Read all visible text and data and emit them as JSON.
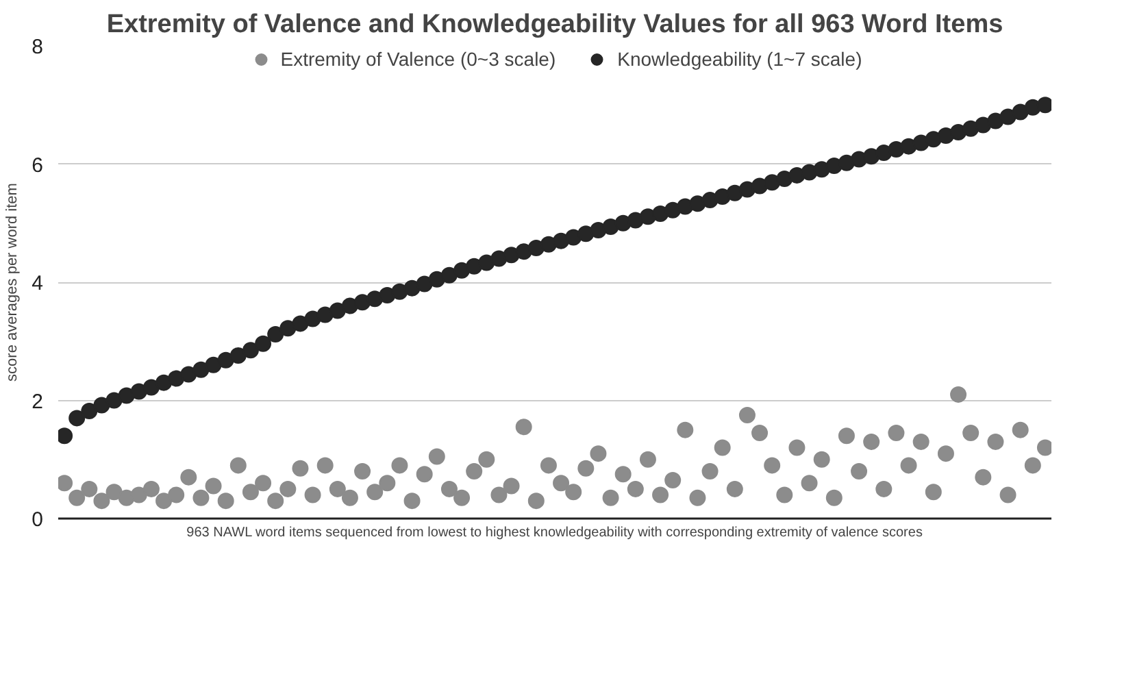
{
  "chart_data": {
    "type": "scatter",
    "title": "Extremity of Valence and Knowledgeability Values for all 963 Word Items",
    "xlabel": "963 NAWL word items sequenced from lowest to highest knowledgeability with corresponding extremity of valence scores",
    "ylabel": "score averages per word item",
    "categories": [
      null,
      null,
      null,
      null,
      null,
      null,
      null,
      null,
      null,
      null,
      null,
      null,
      null,
      null,
      null,
      null,
      null,
      null,
      null,
      null,
      null,
      null,
      null,
      null,
      null,
      null,
      null,
      null,
      null,
      null,
      null,
      null,
      null,
      null,
      null,
      null,
      null,
      null,
      null,
      null,
      null,
      null,
      null,
      null,
      null,
      null,
      null,
      null,
      null,
      null,
      null,
      null,
      null,
      null,
      null,
      null,
      null,
      null,
      null,
      null,
      null,
      null,
      null,
      null,
      null,
      null,
      null,
      null,
      null,
      null,
      null,
      null,
      null,
      null,
      null,
      null,
      null,
      null,
      null,
      null
    ],
    "series": [
      {
        "name": "Extremity of Valence (0~3 scale)",
        "color": "#8c8c8c",
        "values": [
          0.6,
          0.35,
          0.5,
          0.3,
          0.45,
          0.35,
          0.4,
          0.5,
          0.3,
          0.4,
          0.7,
          0.35,
          0.55,
          0.3,
          0.9,
          0.45,
          0.6,
          0.3,
          0.5,
          0.85,
          0.4,
          0.9,
          0.5,
          0.35,
          0.8,
          0.45,
          0.6,
          0.9,
          0.3,
          0.75,
          1.05,
          0.5,
          0.35,
          0.8,
          1.0,
          0.4,
          0.55,
          1.55,
          0.3,
          0.9,
          0.6,
          0.45,
          0.85,
          1.1,
          0.35,
          0.75,
          0.5,
          1.0,
          0.4,
          0.65,
          1.5,
          0.35,
          0.8,
          1.2,
          0.5,
          1.75,
          1.45,
          0.9,
          0.4,
          1.2,
          0.6,
          1.0,
          0.35,
          1.4,
          0.8,
          1.3,
          0.5,
          1.45,
          0.9,
          1.3,
          0.45,
          1.1,
          2.1,
          1.45,
          0.7,
          1.3,
          0.4,
          1.5,
          0.9,
          1.2
        ]
      },
      {
        "name": "Knowledgeability (1~7 scale)",
        "color": "#262626",
        "values": [
          1.4,
          1.7,
          1.82,
          1.92,
          2.0,
          2.08,
          2.15,
          2.22,
          2.3,
          2.37,
          2.44,
          2.52,
          2.6,
          2.68,
          2.76,
          2.85,
          2.96,
          3.12,
          3.22,
          3.3,
          3.38,
          3.45,
          3.52,
          3.6,
          3.66,
          3.72,
          3.78,
          3.84,
          3.9,
          3.97,
          4.05,
          4.12,
          4.2,
          4.27,
          4.33,
          4.4,
          4.46,
          4.52,
          4.58,
          4.64,
          4.7,
          4.76,
          4.82,
          4.88,
          4.94,
          5.0,
          5.05,
          5.11,
          5.16,
          5.22,
          5.28,
          5.33,
          5.39,
          5.45,
          5.51,
          5.57,
          5.63,
          5.69,
          5.75,
          5.81,
          5.86,
          5.91,
          5.97,
          6.02,
          6.08,
          6.13,
          6.19,
          6.25,
          6.3,
          6.36,
          6.42,
          6.48,
          6.54,
          6.6,
          6.66,
          6.73,
          6.8,
          6.88,
          6.96,
          7.0
        ]
      }
    ],
    "ylim": [
      0,
      8
    ],
    "yticks": [
      0,
      2,
      4,
      6,
      8
    ],
    "grid": "y",
    "legend": "top",
    "marker": "circle",
    "tick_labels": "y"
  }
}
